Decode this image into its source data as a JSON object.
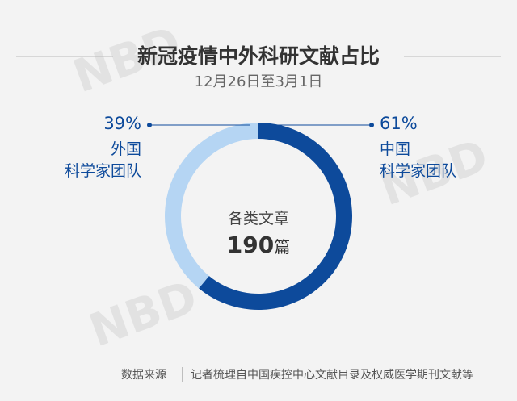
{
  "chart_data": {
    "type": "donut",
    "title": "新冠疫情中外科研文献占比",
    "subtitle": "12月26日至3月1日",
    "categories": [
      "中国\n科学家团队",
      "外国\n科学家团队"
    ],
    "values": [
      61,
      39
    ],
    "value_labels": [
      "61%",
      "39%"
    ],
    "colors": [
      "#0d4a9b",
      "#b5d5f3"
    ],
    "center_label": "各类文章",
    "center_value": 190,
    "center_unit": "篇",
    "source_label": "数据来源",
    "source": "记者梳理自中国疾控中心文献目录及权威医学期刊文献等",
    "watermark": "NBD"
  }
}
